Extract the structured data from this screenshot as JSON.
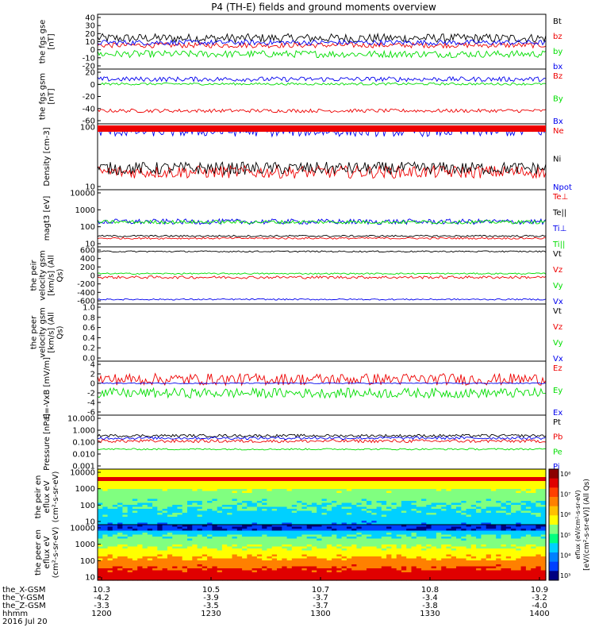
{
  "title": "P4 (TH-E) fields and ground moments overview",
  "date_text": "2016 Jul 20",
  "colors": {
    "black": "#000000",
    "red": "#ee0000",
    "green": "#00dd00",
    "blue": "#0000ee"
  },
  "colorbar": {
    "ticks": [
      "10³",
      "10⁴",
      "10⁵",
      "10⁶",
      "10⁷",
      "10⁸"
    ],
    "label": "[eV/(cm²-s-sr-eV)] (All Qs)",
    "inner_label": "eflux (eV/cm²-s-sr-eV)"
  },
  "x_rows": [
    {
      "label": "the_X-GSM",
      "values": [
        "10.3",
        "10.5",
        "10.7",
        "10.8",
        "10.9"
      ]
    },
    {
      "label": "the_Y-GSM",
      "values": [
        "-4.2",
        "-3.9",
        "-3.7",
        "-3.4",
        "-3.2"
      ]
    },
    {
      "label": "the_Z-GSM",
      "values": [
        "-3.3",
        "-3.5",
        "-3.7",
        "-3.8",
        "-4.0"
      ]
    },
    {
      "label": "hhmm",
      "values": [
        "1200",
        "1230",
        "1300",
        "1330",
        "1400"
      ]
    }
  ],
  "chart_data": [
    {
      "type": "line",
      "ylabel": "the fgs gse [nT]",
      "yticks": [
        "40",
        "30",
        "20",
        "10",
        "0",
        "-10",
        "-20"
      ],
      "ylim": [
        -20,
        42
      ],
      "series": [
        {
          "name": "Bt",
          "color": "black",
          "level": 15,
          "amp": 5
        },
        {
          "name": "bz",
          "color": "red",
          "level": 7,
          "amp": 3
        },
        {
          "name": "by",
          "color": "green",
          "level": -3,
          "amp": 4
        },
        {
          "name": "bx",
          "color": "blue",
          "level": 10,
          "amp": 3
        }
      ]
    },
    {
      "type": "line",
      "ylabel": "the fgs gsm [nT]",
      "yticks": [
        "20",
        "0",
        "-20",
        "-40",
        "-60"
      ],
      "ylim": [
        -70,
        22
      ],
      "series": [
        {
          "name": "Bz",
          "color": "red",
          "level": -48,
          "amp": 3
        },
        {
          "name": "By",
          "color": "green",
          "level": -3,
          "amp": 2
        },
        {
          "name": "Bx",
          "color": "blue",
          "level": 5,
          "amp": 4
        }
      ]
    },
    {
      "type": "line",
      "ylabel": "Density [cm-3]",
      "yticks": [
        "100",
        "10"
      ],
      "log": true,
      "ylim": [
        1,
        400
      ],
      "series": [
        {
          "name": "Ne",
          "color": "red",
          "level": 5,
          "amp": 0.25
        },
        {
          "name": "Ni",
          "color": "black",
          "level": 7,
          "amp": 0.25
        },
        {
          "name": "Npot",
          "color": "blue",
          "level": 200,
          "amp": 0.2
        }
      ]
    },
    {
      "type": "line",
      "ylabel": "magt3 [eV]",
      "yticks": [
        "10000",
        "1000",
        "100",
        "10"
      ],
      "log": true,
      "ylim": [
        10,
        15000
      ],
      "series": [
        {
          "name": "Te⊥",
          "color": "red",
          "level": 30,
          "amp": 0.05
        },
        {
          "name": "Te||",
          "color": "black",
          "level": 40,
          "amp": 0.05
        },
        {
          "name": "Ti⊥",
          "color": "blue",
          "level": 250,
          "amp": 0.15
        },
        {
          "name": "Ti||",
          "color": "green",
          "level": 240,
          "amp": 0.1
        }
      ]
    },
    {
      "type": "line",
      "ylabel": "the peir velocity gsm [km/s] (All Qs)",
      "yticks": [
        "600",
        "400",
        "200",
        "0",
        "-200",
        "-400",
        "-600"
      ],
      "ylim": [
        -620,
        620
      ],
      "series": [
        {
          "name": "Vt",
          "color": "black",
          "level": 520,
          "amp": 15
        },
        {
          "name": "Vz",
          "color": "red",
          "level": -40,
          "amp": 30
        },
        {
          "name": "Vy",
          "color": "green",
          "level": 40,
          "amp": 15
        },
        {
          "name": "Vx",
          "color": "blue",
          "level": -520,
          "amp": 15
        }
      ]
    },
    {
      "type": "line",
      "ylabel": "the peer velocity gsm [km/s] (All Qs)",
      "yticks": [
        "1.0",
        "0.8",
        "0.6",
        "0.4",
        "0.2",
        "0.0"
      ],
      "ylim": [
        0,
        1.05
      ],
      "series": [
        {
          "name": "Vt",
          "color": "black",
          "level": null,
          "amp": 0
        },
        {
          "name": "Vz",
          "color": "red",
          "level": null,
          "amp": 0
        },
        {
          "name": "Vy",
          "color": "green",
          "level": null,
          "amp": 0
        },
        {
          "name": "Vx",
          "color": "blue",
          "level": null,
          "amp": 0
        }
      ]
    },
    {
      "type": "line",
      "ylabel": "E=-VxB [mV/m]",
      "yticks": [
        "4",
        "2",
        "0",
        "-2",
        "-4",
        "-6"
      ],
      "ylim": [
        -6.5,
        4.5
      ],
      "series": [
        {
          "name": "Ez",
          "color": "red",
          "level": 0.8,
          "amp": 1.2
        },
        {
          "name": "Ey",
          "color": "green",
          "level": -2,
          "amp": 1.0
        },
        {
          "name": "Ex",
          "color": "blue",
          "level": 0,
          "amp": 0.1
        }
      ]
    },
    {
      "type": "line",
      "ylabel": "Pressure [nPa]",
      "yticks": [
        "10.000",
        "1.000",
        "0.100",
        "0.010",
        "0.001"
      ],
      "log": true,
      "ylim": [
        0.001,
        10
      ],
      "series": [
        {
          "name": "Pt",
          "color": "black",
          "level": 0.3,
          "amp": 0.1
        },
        {
          "name": "Pb",
          "color": "red",
          "level": 0.12,
          "amp": 0.12
        },
        {
          "name": "Pe",
          "color": "green",
          "level": 0.03,
          "amp": 0.06
        },
        {
          "name": "Pi",
          "color": "blue",
          "level": 0.2,
          "amp": 0.1
        }
      ]
    },
    {
      "type": "heatmap",
      "ylabel": "the peir en eflux eV (cm²-s-sr-eV)",
      "yticks": [
        "10000",
        "1000",
        "100",
        "10"
      ]
    },
    {
      "type": "heatmap",
      "ylabel": "the peer en eflux eV (cm²-s-sr-eV)",
      "yticks": [
        "10000",
        "1000",
        "100",
        "10"
      ]
    }
  ]
}
